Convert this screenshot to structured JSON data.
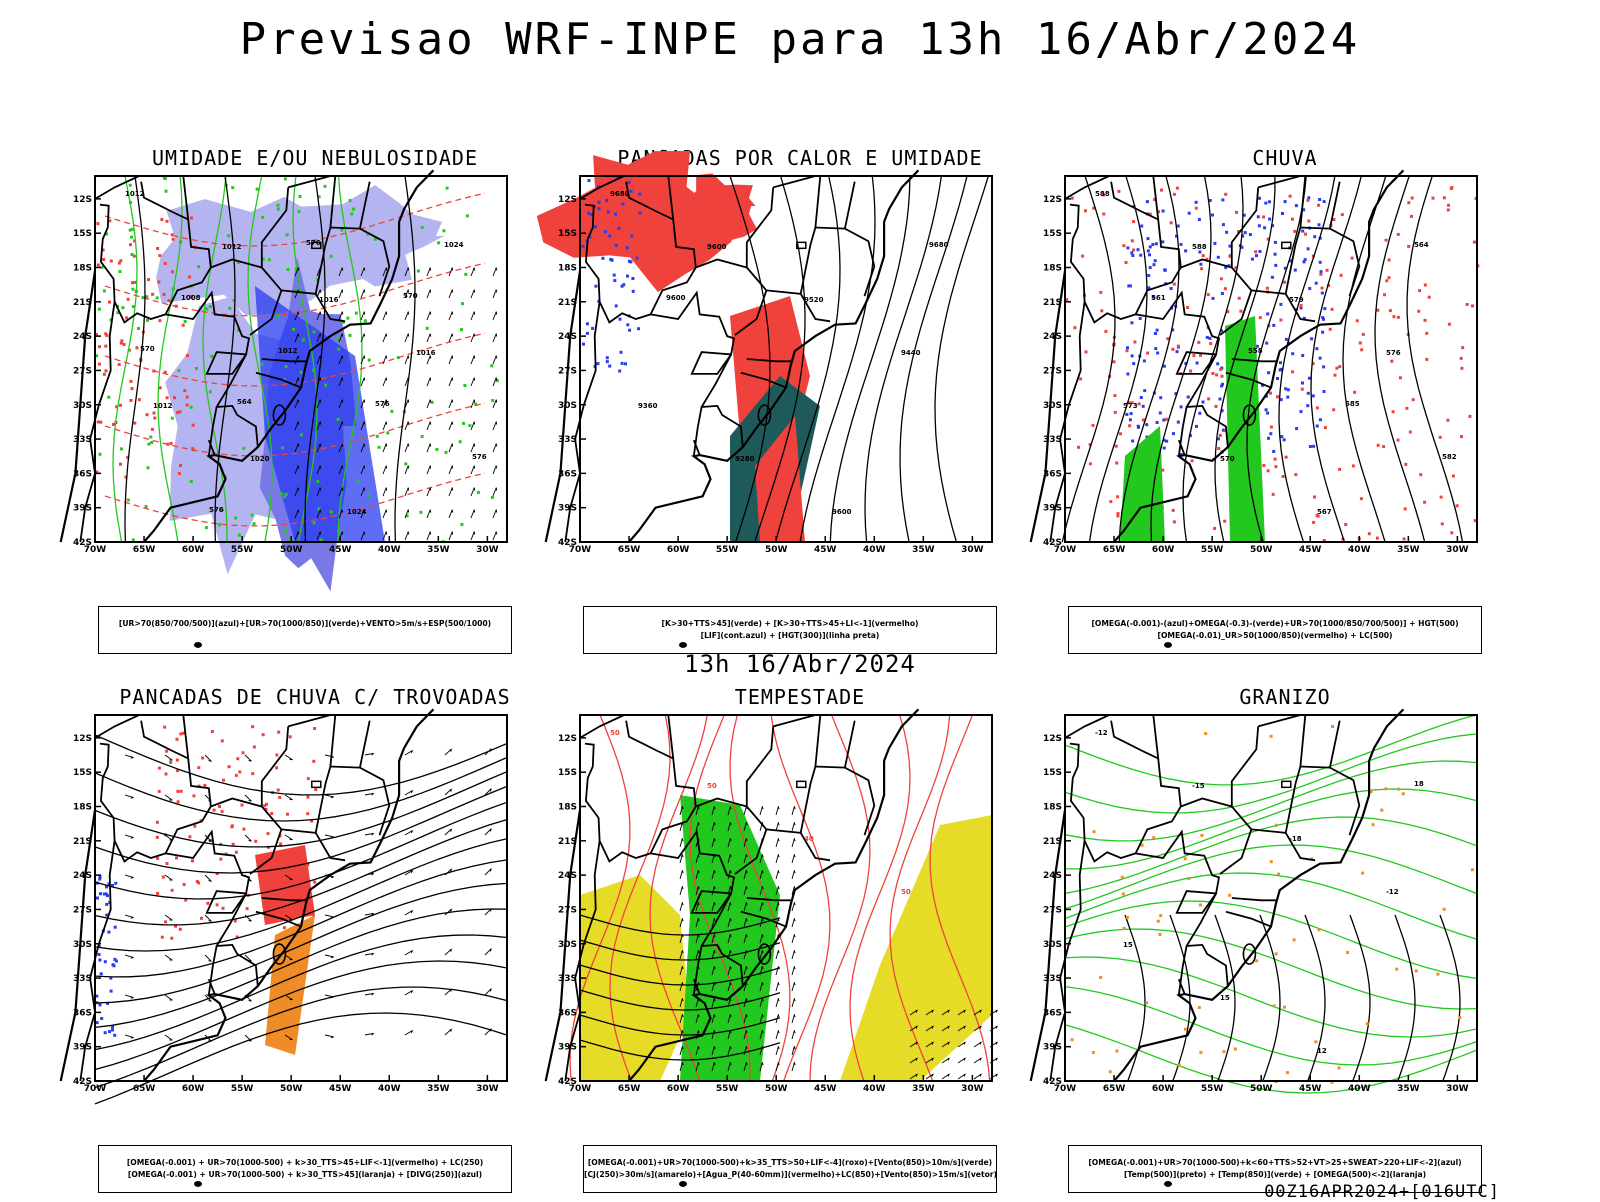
{
  "title": "Previsao WRF-INPE  para 13h 16/Abr/2024",
  "mid_title": "13h 16/Abr/2024",
  "footer": "00Z16APR2024+[016UTC]",
  "axes": {
    "lat_ticks": [
      "12S",
      "15S",
      "18S",
      "21S",
      "24S",
      "27S",
      "30S",
      "33S",
      "36S",
      "39S",
      "42S"
    ],
    "lon_ticks": [
      "70W",
      "65W",
      "60W",
      "55W",
      "50W",
      "45W",
      "40W",
      "35W",
      "30W"
    ],
    "lat_range": [
      -42,
      -10
    ],
    "lon_range": [
      -70,
      -28
    ]
  },
  "colors": {
    "red": "#f0423c",
    "green": "#22c81e",
    "blue": "#2a3cf0",
    "lightblue": "#b4b4f0",
    "midblue": "#7878e6",
    "darkteal": "#1f5a5a",
    "yellow": "#e6dc28",
    "orange": "#f08c28",
    "black": "#000000"
  },
  "panels": [
    {
      "id": "umidade",
      "title": "UMIDADE E/OU NEBULOSIDADE",
      "legend": [
        "[UR>70(850/700/500)](azul)+[UR>70(1000/850)](verde)+VENTO>5m/s+ESP(500/1000)"
      ],
      "contour_labels": [
        "1012",
        "1012",
        "1016",
        "1016",
        "1012",
        "1020",
        "1024",
        "1024",
        "1008",
        "1012",
        "576",
        "576",
        "576",
        "576",
        "570",
        "570",
        "564"
      ]
    },
    {
      "id": "pancadas-calor",
      "title": "PANCADAS POR CALOR E UMIDADE",
      "legend": [
        "[K>30+TTS>45](verde)  +  [K>30+TTS>45+LI<-1](vermelho)",
        "[LIF](cont.azul)  +  [HGT(300)](linha preta)"
      ],
      "contour_labels": [
        "9680",
        "9600",
        "9520",
        "9440",
        "9360",
        "9280",
        "9600",
        "9680",
        "9600"
      ]
    },
    {
      "id": "chuva",
      "title": "CHUVA",
      "legend": [
        "[OMEGA(-0.001)-(azul)+OMEGA(-0.3)-(verde)+UR>70(1000/850/700/500)]  +  HGT(500)",
        "[OMEGA(-0.01)_UR>50(1000/850)(vermelho)  +  LC(500)"
      ],
      "contour_labels": [
        "588",
        "588",
        "579",
        "576",
        "573",
        "570",
        "567",
        "564",
        "561",
        "558",
        "585",
        "582"
      ]
    },
    {
      "id": "pancadas-trovoadas",
      "title": "PANCADAS DE CHUVA C/ TROVOADAS",
      "legend": [
        "[OMEGA(-0.001)  +  UR>70(1000-500)  +  k>30_TTS>45+LIF<-1](vermelho)  +  LC(250)",
        "[OMEGA(-0.001)  +  UR>70(1000-500)  +  k>30_TTS>45](laranja)  +  [DIVG(250)](azul)"
      ],
      "contour_labels": []
    },
    {
      "id": "tempestade",
      "title": "TEMPESTADE",
      "legend": [
        "[OMEGA(-0.001)+UR>70(1000-500)+k>35_TTS>50+LIF<-4](roxo)+[Vento(850)>10m/s](verde)",
        "[CJ(250)>30m/s](amarelo)+[Agua_P(40-60mm)](vermelho)+LC(850)+[Vento(850)>15m/s](vetor)"
      ],
      "contour_labels": [
        "50",
        "50",
        "40",
        "50"
      ]
    },
    {
      "id": "granizo",
      "title": "GRANIZO",
      "legend": [
        "[OMEGA(-0.001)+UR>70(1000-500)+k<60+TTS>52+VT>25+SWEAT>220+LIF<-2](azul)",
        "[Temp(500)](preto)  +  [Temp(850)](verde)  +  [OMEGA(500)<-2](laranja)"
      ],
      "contour_labels": [
        "-12",
        "-15",
        "-18",
        "-12",
        "15",
        "15",
        "12",
        "18"
      ]
    }
  ]
}
